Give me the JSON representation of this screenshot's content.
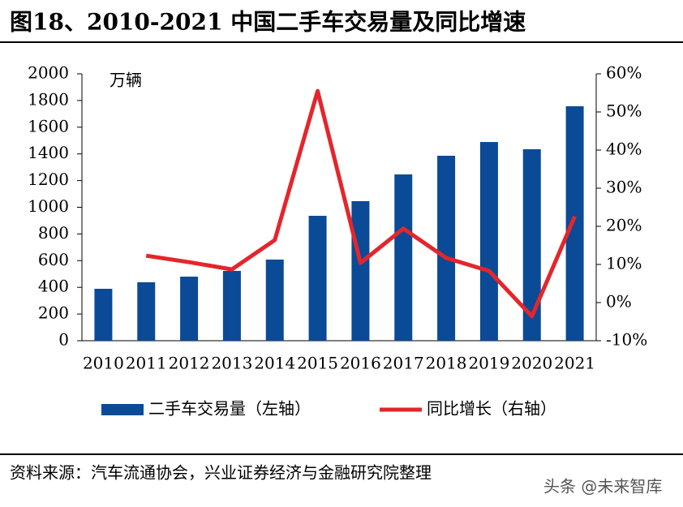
{
  "chart_data": {
    "type": "bar",
    "title": "图18、2010-2021 中国二手车交易量及同比增速",
    "y_label": "万辆",
    "categories": [
      "2010",
      "2011",
      "2012",
      "2013",
      "2014",
      "2015",
      "2016",
      "2017",
      "2018",
      "2019",
      "2020",
      "2021"
    ],
    "series": [
      {
        "name": "二手车交易量（左轴）",
        "type": "bar",
        "color": "#0b4a96",
        "values": [
          389,
          438,
          480,
          523,
          608,
          936,
          1046,
          1246,
          1386,
          1489,
          1435,
          1757
        ]
      },
      {
        "name": "同比增长（右轴）",
        "type": "line",
        "axis": "y2",
        "color": "#e3262b",
        "values": [
          null,
          12.3,
          10.6,
          8.7,
          16.4,
          55.5,
          10.4,
          19.4,
          11.7,
          8.3,
          -3.6,
          22.6
        ]
      }
    ],
    "ylim": [
      0,
      2000
    ],
    "yticks": [
      0,
      200,
      400,
      600,
      800,
      1000,
      1200,
      1400,
      1600,
      1800,
      2000
    ],
    "y2lim": [
      -10,
      60
    ],
    "y2ticks": [
      {
        "value": -10,
        "label": "-10%"
      },
      {
        "value": 0,
        "label": "0%"
      },
      {
        "value": 10,
        "label": "10%"
      },
      {
        "value": 20,
        "label": "20%"
      },
      {
        "value": 30,
        "label": "30%"
      },
      {
        "value": 40,
        "label": "40%"
      },
      {
        "value": 50,
        "label": "50%"
      },
      {
        "value": 60,
        "label": "60%"
      }
    ],
    "grid": false
  },
  "source": "资料来源：汽车流通协会，兴业证券经济与金融研究院整理",
  "watermark": "头条 @未来智库"
}
